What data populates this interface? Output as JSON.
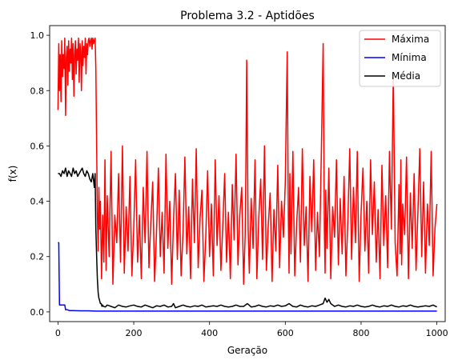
{
  "chart_data": {
    "type": "line",
    "title": "Problema 3.2 - Aptidões",
    "xlabel": "Geração",
    "ylabel": "f(x)",
    "xlim": [
      -22,
      1022
    ],
    "ylim": [
      -0.035,
      1.035
    ],
    "xticks": [
      0,
      200,
      400,
      600,
      800,
      1000
    ],
    "yticks": [
      0.0,
      0.2,
      0.4,
      0.6,
      0.8,
      1.0
    ],
    "xtick_labels": [
      "0",
      "200",
      "400",
      "600",
      "800",
      "1000"
    ],
    "ytick_labels": [
      "0.0",
      "0.2",
      "0.4",
      "0.6",
      "0.8",
      "1.0"
    ],
    "grid": false,
    "legend_position": "top-right",
    "series": [
      {
        "name": "Máxima",
        "color": "#ff0000",
        "x": [
          0,
          2,
          4,
          6,
          8,
          10,
          12,
          14,
          16,
          18,
          20,
          22,
          24,
          26,
          28,
          30,
          32,
          34,
          36,
          38,
          40,
          42,
          44,
          46,
          48,
          50,
          52,
          54,
          56,
          58,
          60,
          62,
          64,
          66,
          68,
          70,
          72,
          74,
          76,
          78,
          80,
          82,
          84,
          86,
          88,
          90,
          92,
          94,
          96,
          98,
          100,
          102,
          104,
          106,
          108,
          110,
          112,
          115,
          118,
          121,
          124,
          127,
          130,
          135,
          140,
          145,
          150,
          155,
          160,
          165,
          170,
          175,
          180,
          185,
          190,
          195,
          200,
          205,
          210,
          215,
          220,
          225,
          230,
          235,
          240,
          245,
          250,
          255,
          260,
          265,
          270,
          275,
          280,
          285,
          290,
          295,
          300,
          305,
          310,
          315,
          320,
          325,
          330,
          335,
          340,
          345,
          350,
          355,
          360,
          365,
          370,
          375,
          380,
          385,
          390,
          395,
          400,
          405,
          410,
          415,
          420,
          425,
          430,
          435,
          440,
          445,
          450,
          455,
          460,
          465,
          470,
          475,
          480,
          485,
          490,
          494,
          496,
          498,
          502,
          505,
          510,
          515,
          520,
          525,
          530,
          535,
          540,
          545,
          550,
          555,
          560,
          565,
          570,
          575,
          580,
          585,
          590,
          595,
          600,
          605,
          608,
          610,
          612,
          615,
          620,
          625,
          630,
          635,
          640,
          645,
          650,
          655,
          660,
          665,
          670,
          675,
          680,
          685,
          690,
          695,
          700,
          703,
          705,
          707,
          710,
          715,
          720,
          725,
          730,
          735,
          740,
          745,
          750,
          755,
          760,
          765,
          770,
          775,
          780,
          785,
          790,
          795,
          800,
          805,
          810,
          815,
          820,
          825,
          830,
          835,
          840,
          845,
          850,
          855,
          860,
          865,
          870,
          875,
          880,
          885,
          890,
          895,
          900,
          903,
          905,
          907,
          910,
          915,
          920,
          925,
          930,
          935,
          940,
          945,
          950,
          955,
          960,
          965,
          970,
          975,
          980,
          985,
          990,
          995,
          1000
        ],
        "values": [
          0.73,
          0.97,
          0.8,
          0.93,
          0.76,
          0.98,
          0.85,
          0.93,
          0.88,
          0.99,
          0.71,
          0.92,
          0.96,
          0.82,
          0.98,
          0.87,
          0.95,
          0.9,
          0.99,
          0.84,
          0.97,
          0.78,
          0.93,
          0.98,
          0.86,
          0.95,
          0.91,
          0.99,
          0.83,
          0.97,
          0.94,
          0.8,
          0.98,
          0.89,
          0.96,
          0.92,
          0.99,
          0.86,
          0.97,
          0.93,
          0.98,
          0.99,
          0.96,
          0.98,
          0.99,
          0.95,
          0.99,
          0.97,
          0.98,
          0.99,
          0.88,
          0.6,
          0.35,
          0.22,
          0.45,
          0.3,
          0.4,
          0.12,
          0.35,
          0.18,
          0.55,
          0.15,
          0.42,
          0.2,
          0.58,
          0.1,
          0.35,
          0.25,
          0.5,
          0.18,
          0.6,
          0.14,
          0.38,
          0.22,
          0.49,
          0.13,
          0.3,
          0.55,
          0.18,
          0.35,
          0.12,
          0.45,
          0.25,
          0.58,
          0.16,
          0.32,
          0.47,
          0.11,
          0.28,
          0.52,
          0.2,
          0.36,
          0.14,
          0.57,
          0.23,
          0.4,
          0.1,
          0.33,
          0.5,
          0.19,
          0.44,
          0.13,
          0.29,
          0.56,
          0.21,
          0.38,
          0.12,
          0.48,
          0.25,
          0.59,
          0.16,
          0.34,
          0.44,
          0.11,
          0.27,
          0.51,
          0.2,
          0.39,
          0.13,
          0.55,
          0.24,
          0.42,
          0.15,
          0.31,
          0.5,
          0.18,
          0.36,
          0.12,
          0.46,
          0.26,
          0.57,
          0.17,
          0.35,
          0.45,
          0.1,
          0.28,
          0.52,
          0.91,
          0.3,
          0.14,
          0.41,
          0.23,
          0.55,
          0.12,
          0.34,
          0.48,
          0.19,
          0.6,
          0.15,
          0.31,
          0.43,
          0.11,
          0.37,
          0.22,
          0.53,
          0.16,
          0.4,
          0.27,
          0.47,
          0.94,
          0.35,
          0.14,
          0.5,
          0.21,
          0.58,
          0.13,
          0.32,
          0.45,
          0.18,
          0.59,
          0.24,
          0.38,
          0.11,
          0.49,
          0.29,
          0.55,
          0.15,
          0.36,
          0.2,
          0.57,
          0.97,
          0.3,
          0.14,
          0.44,
          0.23,
          0.52,
          0.12,
          0.38,
          0.27,
          0.55,
          0.17,
          0.41,
          0.21,
          0.49,
          0.13,
          0.33,
          0.59,
          0.19,
          0.45,
          0.25,
          0.58,
          0.11,
          0.36,
          0.52,
          0.22,
          0.4,
          0.14,
          0.55,
          0.28,
          0.47,
          0.18,
          0.37,
          0.12,
          0.53,
          0.24,
          0.42,
          0.16,
          0.58,
          0.3,
          0.86,
          0.25,
          0.13,
          0.46,
          0.21,
          0.55,
          0.17,
          0.39,
          0.28,
          0.56,
          0.12,
          0.43,
          0.23,
          0.5,
          0.15,
          0.36,
          0.59,
          0.2,
          0.47,
          0.14,
          0.39,
          0.24,
          0.58,
          0.13,
          0.3,
          0.39
        ]
      },
      {
        "name": "Mínima",
        "color": "#0000ff",
        "x": [
          0,
          2,
          3,
          4,
          6,
          10,
          14,
          18,
          20,
          24,
          30,
          40,
          60,
          80,
          100,
          200,
          400,
          600,
          800,
          1000
        ],
        "values": [
          0.25,
          0.25,
          0.15,
          0.025,
          0.025,
          0.025,
          0.025,
          0.025,
          0.008,
          0.008,
          0.005,
          0.005,
          0.004,
          0.004,
          0.003,
          0.003,
          0.003,
          0.003,
          0.003,
          0.003
        ]
      },
      {
        "name": "Média",
        "color": "#000000",
        "x": [
          0,
          4,
          8,
          12,
          16,
          20,
          24,
          28,
          32,
          36,
          40,
          44,
          48,
          52,
          56,
          60,
          64,
          68,
          72,
          76,
          80,
          84,
          88,
          92,
          96,
          98,
          100,
          102,
          104,
          106,
          108,
          110,
          112,
          114,
          116,
          118,
          120,
          125,
          130,
          140,
          150,
          160,
          170,
          180,
          190,
          200,
          210,
          220,
          230,
          240,
          250,
          260,
          270,
          280,
          290,
          300,
          305,
          310,
          320,
          330,
          340,
          350,
          360,
          370,
          380,
          390,
          400,
          410,
          420,
          430,
          440,
          450,
          460,
          470,
          480,
          490,
          500,
          510,
          520,
          530,
          540,
          550,
          560,
          570,
          580,
          590,
          600,
          610,
          620,
          630,
          640,
          650,
          660,
          670,
          680,
          690,
          700,
          705,
          710,
          715,
          720,
          730,
          740,
          750,
          760,
          770,
          780,
          790,
          800,
          810,
          820,
          830,
          840,
          850,
          860,
          870,
          880,
          890,
          900,
          910,
          920,
          930,
          940,
          950,
          960,
          970,
          980,
          990,
          1000
        ],
        "values": [
          0.5,
          0.5,
          0.49,
          0.51,
          0.5,
          0.52,
          0.49,
          0.51,
          0.5,
          0.49,
          0.52,
          0.5,
          0.51,
          0.49,
          0.5,
          0.51,
          0.52,
          0.5,
          0.49,
          0.51,
          0.5,
          0.48,
          0.47,
          0.5,
          0.45,
          0.5,
          0.3,
          0.2,
          0.12,
          0.07,
          0.05,
          0.04,
          0.03,
          0.03,
          0.02,
          0.025,
          0.02,
          0.018,
          0.025,
          0.02,
          0.015,
          0.025,
          0.02,
          0.018,
          0.022,
          0.025,
          0.02,
          0.018,
          0.025,
          0.02,
          0.015,
          0.022,
          0.02,
          0.025,
          0.018,
          0.02,
          0.03,
          0.015,
          0.02,
          0.025,
          0.02,
          0.018,
          0.022,
          0.02,
          0.025,
          0.018,
          0.02,
          0.022,
          0.02,
          0.025,
          0.02,
          0.018,
          0.02,
          0.025,
          0.02,
          0.02,
          0.03,
          0.018,
          0.02,
          0.025,
          0.02,
          0.018,
          0.022,
          0.02,
          0.025,
          0.02,
          0.022,
          0.03,
          0.02,
          0.018,
          0.025,
          0.02,
          0.018,
          0.022,
          0.02,
          0.025,
          0.03,
          0.05,
          0.035,
          0.045,
          0.03,
          0.02,
          0.025,
          0.02,
          0.018,
          0.022,
          0.02,
          0.025,
          0.02,
          0.018,
          0.02,
          0.025,
          0.02,
          0.018,
          0.022,
          0.02,
          0.025,
          0.02,
          0.018,
          0.022,
          0.02,
          0.025,
          0.02,
          0.018,
          0.02,
          0.022,
          0.02,
          0.025,
          0.018
        ]
      }
    ]
  }
}
